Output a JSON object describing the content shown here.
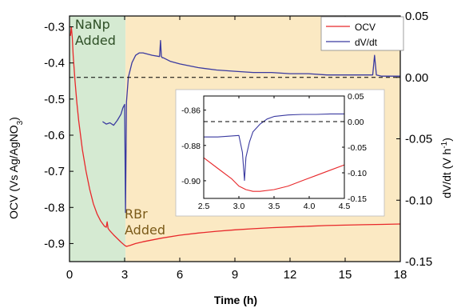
{
  "chart_data": [
    {
      "type": "line",
      "xlabel": "Time (h)",
      "ylabel_left_parts": [
        "OCV (Vs Ag/AgNO",
        "3",
        ")"
      ],
      "ylabel_right_parts": [
        "dV/dt (V h",
        "-1",
        ")"
      ],
      "xlim": [
        0,
        18
      ],
      "ylim_left": [
        -0.95,
        -0.27
      ],
      "ylim_right": [
        -0.15,
        0.05
      ],
      "xticks": [
        0,
        3,
        6,
        9,
        12,
        15,
        18
      ],
      "yticks_left": [
        -0.3,
        -0.4,
        -0.5,
        -0.6,
        -0.7,
        -0.8,
        -0.9
      ],
      "yticks_right": [
        0.05,
        0.0,
        -0.05,
        -0.1,
        -0.15
      ],
      "ytick_labels_left": [
        "-0.3",
        "-0.4",
        "-0.5",
        "-0.6",
        "-0.7",
        "-0.8",
        "-0.9"
      ],
      "ytick_labels_right": [
        "0.05",
        "0.00",
        "-0.05",
        "-0.10",
        "-0.15"
      ],
      "shaded_regions": [
        {
          "x": [
            0,
            3.05
          ],
          "color": "#d5ead2"
        },
        {
          "x": [
            3.05,
            18
          ],
          "color": "#fbe9c3"
        }
      ],
      "annotations": [
        {
          "lines": [
            "NaNp",
            "Added"
          ],
          "x": 0.3,
          "y": -0.305,
          "color": "#2e4f26"
        },
        {
          "lines": [
            "RBr",
            "Added"
          ],
          "x": 3.0,
          "y": -0.83,
          "color": "#7a5a18"
        }
      ],
      "reference_line": {
        "axis": "right",
        "y": 0.0,
        "style": "dashed"
      },
      "legend": {
        "position": "top-right",
        "entries": [
          "OCV",
          "dV/dt"
        ]
      },
      "series": [
        {
          "name": "OCV",
          "axis": "left",
          "color": "#e8282b",
          "x": [
            0.05,
            0.1,
            0.15,
            0.2,
            0.3,
            0.4,
            0.5,
            0.7,
            0.9,
            1.1,
            1.3,
            1.5,
            1.7,
            1.9,
            2.0,
            2.05,
            2.1,
            2.2,
            2.4,
            2.6,
            2.8,
            3.0,
            3.1,
            3.3,
            3.6,
            4.0,
            5.0,
            6.0,
            7.0,
            8.0,
            9.0,
            10.0,
            11.0,
            12.0,
            13.0,
            14.0,
            15.0,
            16.0,
            17.0,
            18.0
          ],
          "y": [
            -0.325,
            -0.3,
            -0.33,
            -0.38,
            -0.45,
            -0.51,
            -0.56,
            -0.64,
            -0.7,
            -0.75,
            -0.79,
            -0.818,
            -0.838,
            -0.852,
            -0.855,
            -0.84,
            -0.858,
            -0.865,
            -0.876,
            -0.886,
            -0.896,
            -0.905,
            -0.908,
            -0.905,
            -0.9,
            -0.895,
            -0.885,
            -0.877,
            -0.871,
            -0.866,
            -0.862,
            -0.859,
            -0.856,
            -0.854,
            -0.852,
            -0.85,
            -0.849,
            -0.848,
            -0.847,
            -0.846
          ]
        },
        {
          "name": "dV/dt",
          "axis": "right",
          "color": "#3a3aa0",
          "x": [
            1.8,
            2.0,
            2.2,
            2.4,
            2.6,
            2.8,
            2.9,
            3.0,
            3.05,
            3.1,
            3.2,
            3.4,
            3.6,
            3.8,
            4.0,
            4.5,
            4.9,
            4.95,
            5.0,
            5.05,
            5.1,
            5.5,
            6.0,
            7.0,
            8.0,
            9.0,
            10.0,
            11.0,
            12.0,
            13.0,
            14.0,
            15.0,
            16.0,
            16.5,
            16.6,
            16.7,
            17.0,
            18.0
          ],
          "y": [
            -0.036,
            -0.038,
            -0.037,
            -0.039,
            -0.035,
            -0.03,
            -0.025,
            -0.022,
            -0.11,
            -0.02,
            0.0,
            0.012,
            0.018,
            0.02,
            0.02,
            0.018,
            0.017,
            0.03,
            0.017,
            0.016,
            0.016,
            0.013,
            0.011,
            0.008,
            0.006,
            0.005,
            0.004,
            0.004,
            0.003,
            0.003,
            0.002,
            0.002,
            0.002,
            0.002,
            0.018,
            0.002,
            0.001,
            0.001
          ]
        }
      ]
    },
    {
      "type": "line",
      "role": "inset",
      "xlim": [
        2.5,
        4.5
      ],
      "ylim_left": [
        -0.91,
        -0.852
      ],
      "ylim_right": [
        -0.15,
        0.05
      ],
      "xticks": [
        2.5,
        3.0,
        3.5,
        4.0,
        4.5
      ],
      "yticks_left": [
        -0.86,
        -0.88,
        -0.9
      ],
      "yticks_right": [
        0.05,
        0.0,
        -0.05,
        -0.1,
        -0.15
      ],
      "xtick_labels": [
        "2.5",
        "3.0",
        "3.5",
        "4.0",
        "4.5"
      ],
      "ytick_labels_left": [
        "-0.86",
        "-0.88",
        "-0.90"
      ],
      "ytick_labels_right": [
        "0.05",
        "0.00",
        "-0.05",
        "-0.10",
        "-0.15"
      ],
      "reference_line": {
        "axis": "right",
        "y": 0.0,
        "style": "dashed"
      },
      "series": [
        {
          "name": "OCV",
          "axis": "left",
          "color": "#e8282b",
          "x": [
            2.5,
            2.7,
            2.9,
            3.0,
            3.1,
            3.2,
            3.3,
            3.5,
            3.7,
            3.9,
            4.1,
            4.3,
            4.5
          ],
          "y": [
            -0.887,
            -0.893,
            -0.899,
            -0.903,
            -0.905,
            -0.906,
            -0.906,
            -0.905,
            -0.903,
            -0.9,
            -0.897,
            -0.894,
            -0.891
          ]
        },
        {
          "name": "dV/dt",
          "axis": "right",
          "color": "#3a3aa0",
          "x": [
            2.5,
            2.7,
            2.9,
            3.0,
            3.05,
            3.08,
            3.1,
            3.15,
            3.2,
            3.3,
            3.4,
            3.5,
            3.7,
            3.9,
            4.1,
            4.3,
            4.5
          ],
          "y": [
            -0.03,
            -0.03,
            -0.028,
            -0.027,
            -0.06,
            -0.115,
            -0.07,
            -0.04,
            -0.02,
            -0.005,
            0.005,
            0.01,
            0.013,
            0.014,
            0.014,
            0.015,
            0.015
          ]
        }
      ]
    }
  ]
}
